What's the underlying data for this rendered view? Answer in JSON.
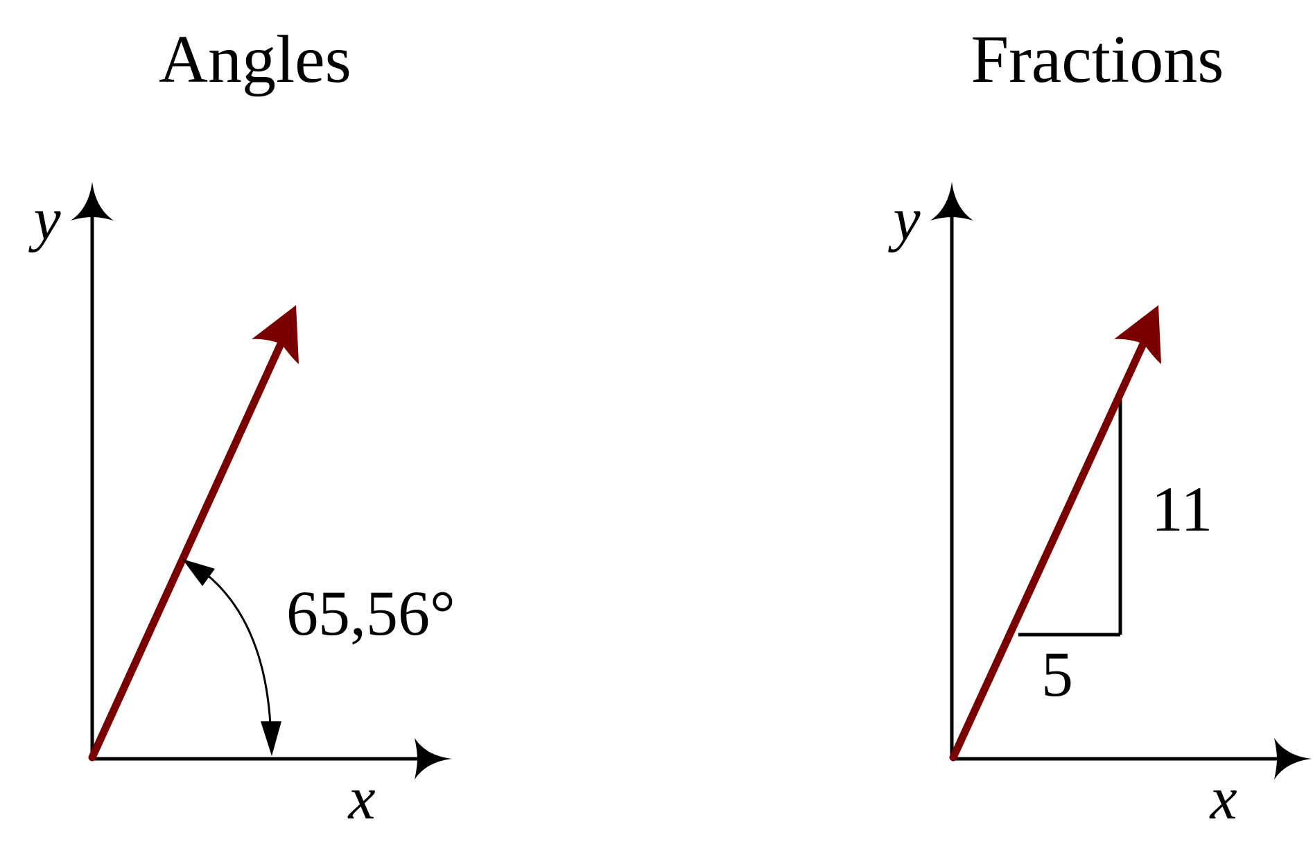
{
  "panels": {
    "angles": {
      "title": "Angles",
      "x_axis_label": "x",
      "y_axis_label": "y",
      "angle_label": "65,56°"
    },
    "fractions": {
      "title": "Fractions",
      "x_axis_label": "x",
      "y_axis_label": "y",
      "rise_label": "11",
      "run_label": "5"
    }
  },
  "colors": {
    "vector": "#7a0000",
    "axes": "#000000"
  }
}
